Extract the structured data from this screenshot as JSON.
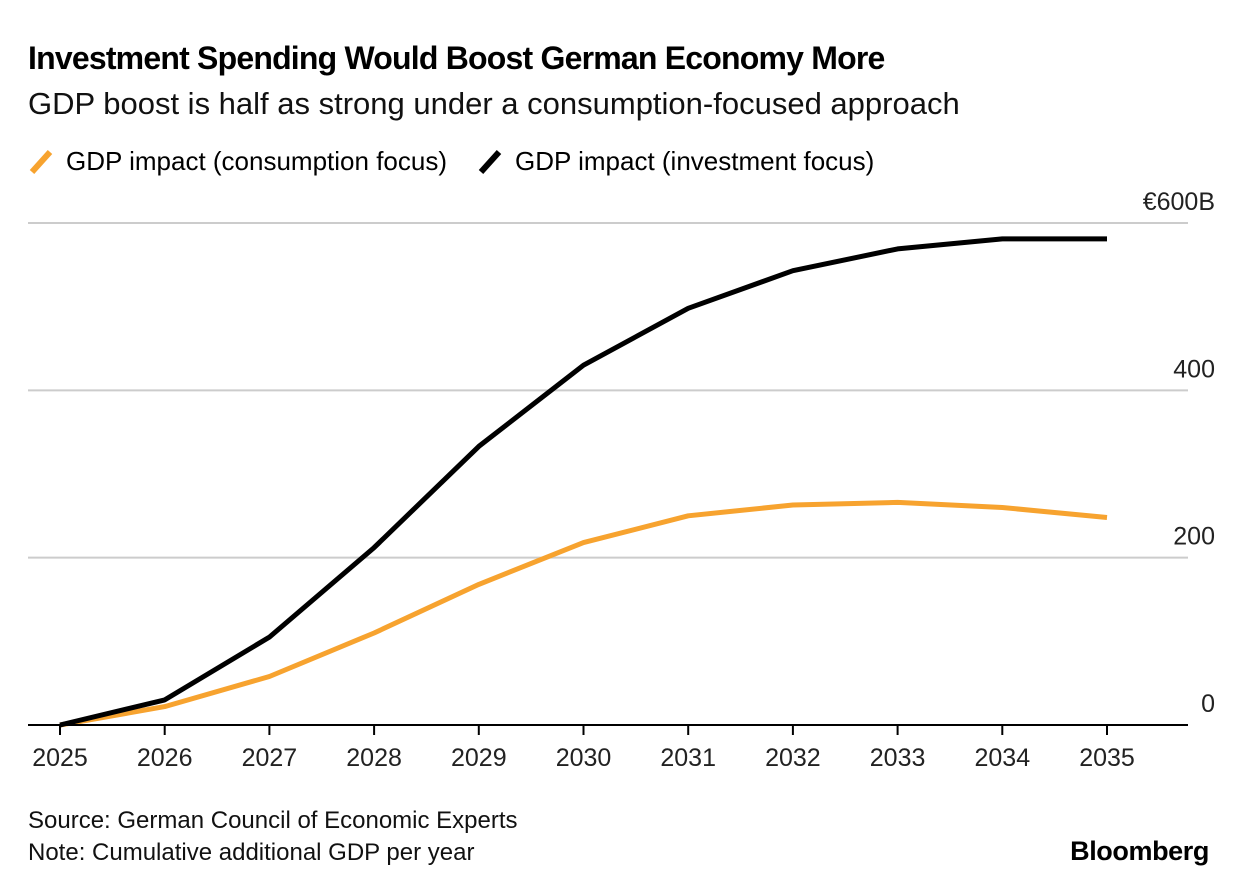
{
  "header": {
    "title": "Investment Spending Would Boost German Economy More",
    "subtitle": "GDP boost is half as strong under a consumption-focused approach"
  },
  "legend": {
    "items": [
      {
        "label": "GDP impact (consumption focus)",
        "color": "#F7A32F"
      },
      {
        "label": "GDP impact (investment focus)",
        "color": "#000000"
      }
    ]
  },
  "footer": {
    "source": "Source: German Council of Economic Experts",
    "note": "Note: Cumulative additional GDP per year",
    "brand": "Bloomberg"
  },
  "chart_data": {
    "type": "line",
    "x": [
      "2025",
      "2026",
      "2027",
      "2028",
      "2029",
      "2030",
      "2031",
      "2032",
      "2033",
      "2034",
      "2035"
    ],
    "series": [
      {
        "name": "GDP impact (consumption focus)",
        "color": "#F7A32F",
        "values": [
          0,
          22,
          58,
          110,
          168,
          218,
          250,
          263,
          266,
          260,
          248
        ]
      },
      {
        "name": "GDP impact (investment focus)",
        "color": "#000000",
        "values": [
          0,
          30,
          105,
          212,
          333,
          430,
          498,
          543,
          569,
          581,
          581
        ]
      }
    ],
    "yticks": [
      {
        "value": 0,
        "label": "0"
      },
      {
        "value": 200,
        "label": "200"
      },
      {
        "value": 400,
        "label": "400"
      },
      {
        "value": 600,
        "label": "€600B"
      }
    ],
    "ylim": [
      0,
      600
    ],
    "grid": true,
    "y_axis_side": "right",
    "legend_position": "top-left",
    "gridline_color": "#CCCCCC"
  }
}
